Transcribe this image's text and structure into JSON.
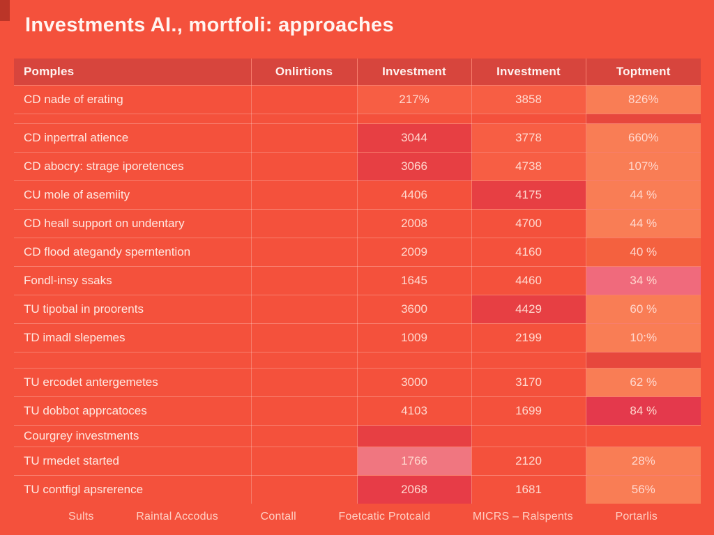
{
  "title": "Investments AI., mortfoli: approaches",
  "colors": {
    "background": "#F4513C",
    "header": "#D7453D",
    "highlight_orange": "#F97D55",
    "highlight_crimson": "#E73F43",
    "highlight_pink": "#F07680"
  },
  "table": {
    "columns": [
      "Pomples",
      "Onlirtions",
      "Investment",
      "Investment",
      "Toptment"
    ],
    "rows": [
      {
        "label": "CD nade of erating",
        "values": [
          "",
          "217%",
          "3858",
          "826%"
        ],
        "variants": [
          "",
          "bright",
          "bright",
          "orange"
        ],
        "size": "normal"
      },
      {
        "label": "",
        "values": [
          "",
          "",
          "",
          ""
        ],
        "variants": [
          "",
          "",
          "",
          "darkfill"
        ],
        "size": "thin-a"
      },
      {
        "label": "CD inpertral atience",
        "values": [
          "",
          "3044",
          "3778",
          "660%"
        ],
        "variants": [
          "",
          "dark",
          "bright",
          "orange"
        ],
        "size": "normal"
      },
      {
        "label": "CD abocry: strage iporetences",
        "values": [
          "",
          "3066",
          "4738",
          "107%"
        ],
        "variants": [
          "",
          "dark",
          "bright",
          "orange"
        ],
        "size": "normal"
      },
      {
        "label": "CU mole of asemiity",
        "values": [
          "",
          "4406",
          "4175",
          "44 %"
        ],
        "variants": [
          "",
          "",
          "dark",
          "orange"
        ],
        "size": "normal"
      },
      {
        "label": "CD heall support on undentary",
        "values": [
          "",
          "2008",
          "4700",
          "44 %"
        ],
        "variants": [
          "",
          "",
          "",
          "orange"
        ],
        "size": "normal"
      },
      {
        "label": "CD flood ategandy sperntention",
        "values": [
          "",
          "2009",
          "4160",
          "40 %"
        ],
        "variants": [
          "",
          "",
          "",
          "orange2"
        ],
        "size": "normal"
      },
      {
        "label": "Fondl-insy ssaks",
        "values": [
          "",
          "1645",
          "4460",
          "34 %"
        ],
        "variants": [
          "",
          "",
          "",
          "pink"
        ],
        "size": "normal"
      },
      {
        "label": "TU tipobal in proorents",
        "values": [
          "",
          "3600",
          "4429",
          "60 %"
        ],
        "variants": [
          "",
          "",
          "dark",
          "orange"
        ],
        "size": "normal"
      },
      {
        "label": "TD imadl slepemes",
        "values": [
          "",
          "1009",
          "2199",
          "10:%"
        ],
        "variants": [
          "",
          "",
          "",
          "orange"
        ],
        "size": "normal"
      },
      {
        "label": "",
        "values": [
          "",
          "",
          "",
          ""
        ],
        "variants": [
          "",
          "",
          "",
          "darkfill"
        ],
        "size": "thin-b"
      },
      {
        "label": "TU ercodet antergemetes",
        "values": [
          "",
          "3000",
          "3170",
          "62 %"
        ],
        "variants": [
          "",
          "",
          "",
          "orange"
        ],
        "size": "normal"
      },
      {
        "label": "TU dobbot apprcatoces",
        "values": [
          "",
          "4103",
          "1699",
          "84 %"
        ],
        "variants": [
          "",
          "",
          "",
          "crimson"
        ],
        "size": "normal"
      },
      {
        "label": "Courgrey investments",
        "values": [
          "",
          "",
          "",
          ""
        ],
        "variants": [
          "",
          "dark",
          "",
          ""
        ],
        "size": "short"
      },
      {
        "label": "TU rmedet started",
        "values": [
          "",
          "1766",
          "2120",
          "28%"
        ],
        "variants": [
          "",
          "pinkcell",
          "",
          "orange"
        ],
        "size": "normal"
      },
      {
        "label": "TU contfigl apsrerence",
        "values": [
          "",
          "2068",
          "1681",
          "56%"
        ],
        "variants": [
          "",
          "dark2",
          "",
          "orange"
        ],
        "size": "normal"
      }
    ]
  },
  "footer": {
    "items": [
      "Sults",
      "Raintal Accodus",
      "Contall",
      "Foetcatic Protcald",
      "MICRS – Ralspents",
      "Portarlis"
    ]
  }
}
